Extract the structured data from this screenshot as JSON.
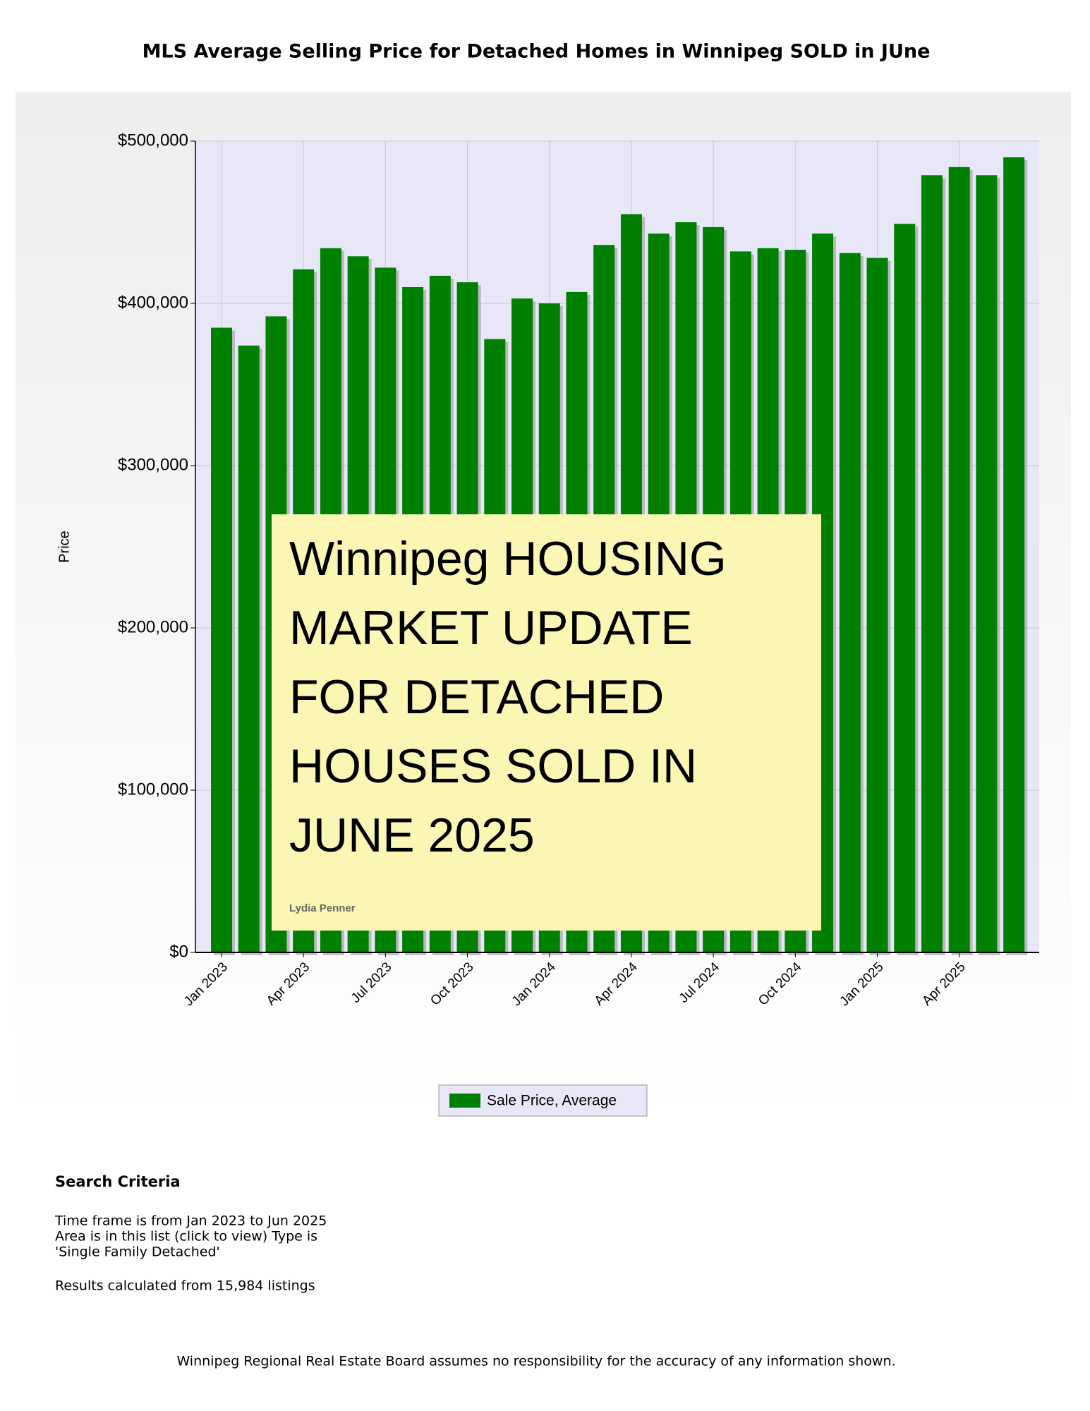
{
  "chart_data": {
    "type": "bar",
    "title": "MLS Average Selling Price for Detached Homes in Winnipeg SOLD in JUne",
    "y_label": "Price",
    "categories": [
      "Jan 2023",
      null,
      null,
      "Apr 2023",
      null,
      null,
      "Jul 2023",
      null,
      null,
      "Oct 2023",
      null,
      null,
      "Jan 2024",
      null,
      null,
      "Apr 2024",
      null,
      null,
      "Jul 2024",
      null,
      null,
      "Oct 2024",
      null,
      null,
      "Jan 2025",
      null,
      null,
      "Apr 2025",
      null,
      null
    ],
    "series": [
      {
        "name": "Sale Price, Average",
        "color": "#008000",
        "values": [
          385000,
          374000,
          392000,
          421000,
          434000,
          429000,
          422000,
          410000,
          417000,
          413000,
          378000,
          403000,
          400000,
          407000,
          436000,
          455000,
          443000,
          450000,
          447000,
          432000,
          434000,
          433000,
          443000,
          431000,
          428000,
          449000,
          479000,
          484000,
          479000,
          490000
        ]
      }
    ],
    "ylim": [
      0,
      500000
    ],
    "yticks": [
      {
        "value": 0,
        "label": "$0"
      },
      {
        "value": 100000,
        "label": "$100,000"
      },
      {
        "value": 200000,
        "label": "$200,000"
      },
      {
        "value": 300000,
        "label": "$300,000"
      },
      {
        "value": 400000,
        "label": "$400,000"
      },
      {
        "value": 500000,
        "label": "$500,000"
      }
    ],
    "grid": true,
    "annotation": {
      "lines": [
        "Winnipeg HOUSING",
        "MARKET UPDATE",
        "FOR DETACHED",
        "HOUSES SOLD IN",
        "JUNE 2025"
      ],
      "author": "Lydia Penner"
    }
  },
  "search_criteria": {
    "heading": "Search Criteria",
    "lines": [
      "Time frame is from Jan 2023 to Jun 2025",
      "Area is in this list (click to view) Type is",
      "'Single Family Detached'"
    ],
    "results": "Results calculated from 15,984 listings"
  },
  "footer": "Winnipeg Regional Real Estate Board assumes no responsibility for the accuracy of any information shown."
}
